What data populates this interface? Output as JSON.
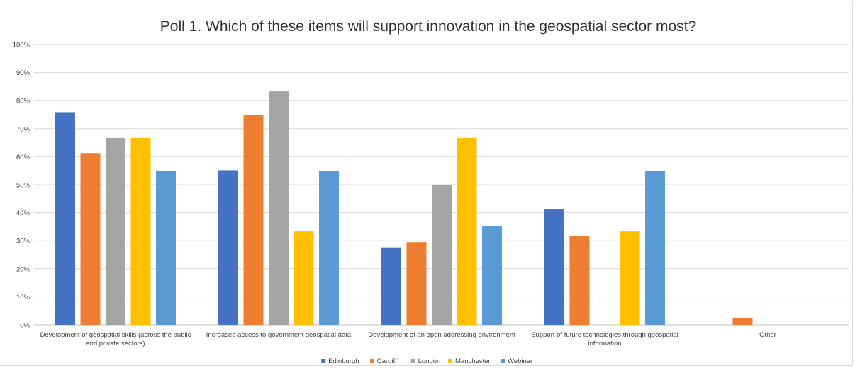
{
  "chart_data": {
    "type": "bar",
    "title": "Poll 1. Which of these items will support innovation in the geospatial sector most?",
    "xlabel": "",
    "ylabel": "",
    "ylim": [
      0,
      100
    ],
    "y_ticks": [
      "0%",
      "10%",
      "20%",
      "30%",
      "40%",
      "50%",
      "60%",
      "70%",
      "80%",
      "90%",
      "100%"
    ],
    "grid": true,
    "legend_position": "bottom",
    "categories": [
      [
        "Development of geospatial skills (across the public",
        "and private sectors)"
      ],
      [
        "Increased access to government geospatial data"
      ],
      [
        "Development of an open addressing environment"
      ],
      [
        "Support of future technologies through geospatial",
        "information"
      ],
      [
        "Other"
      ]
    ],
    "series": [
      {
        "name": "Edinburgh",
        "color": "#4472c4",
        "values": [
          75.9,
          55.2,
          27.6,
          41.4,
          0
        ]
      },
      {
        "name": "Cardiff",
        "color": "#ed7d31",
        "values": [
          61.3,
          75.0,
          29.5,
          31.8,
          2.3
        ]
      },
      {
        "name": "London",
        "color": "#a5a5a5",
        "values": [
          66.7,
          83.3,
          50.0,
          0,
          0
        ]
      },
      {
        "name": "Manchester",
        "color": "#ffc000",
        "values": [
          66.7,
          33.3,
          66.7,
          33.3,
          0
        ]
      },
      {
        "name": "Webinar",
        "color": "#5b9bd5",
        "values": [
          54.9,
          54.9,
          35.3,
          54.9,
          0
        ]
      }
    ]
  }
}
